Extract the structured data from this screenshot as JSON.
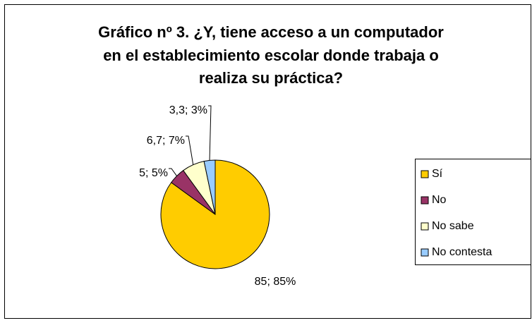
{
  "chart_data": {
    "type": "pie",
    "title": [
      "Gráfico nº 3. ¿Y, tiene acceso a un computador",
      "en el establecimiento escolar donde trabaja o",
      "realiza su práctica?"
    ],
    "categories": [
      "Sí",
      "No",
      "No sabe",
      "No contesta"
    ],
    "values": [
      85,
      5,
      6.7,
      3.3
    ],
    "value_labels": [
      "85; 85%",
      "5; 5%",
      "6,7; 7%",
      "3,3; 3%"
    ],
    "colors": [
      "#FFCC00",
      "#993366",
      "#FFFFCC",
      "#99CCFF"
    ],
    "legend": "right"
  }
}
